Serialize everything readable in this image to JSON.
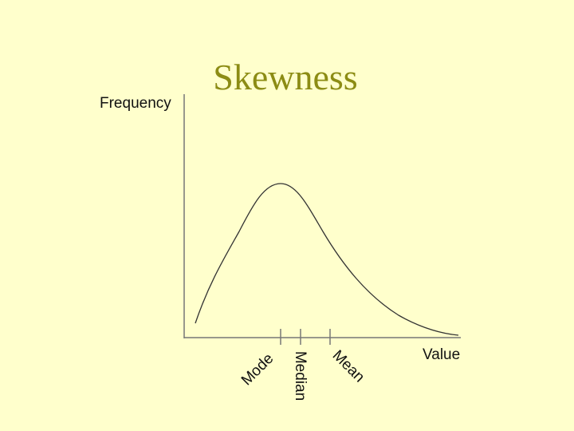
{
  "title": "Skewness",
  "y_axis_label": "Frequency",
  "x_axis_label": "Value",
  "markers": [
    {
      "label": "Mode"
    },
    {
      "label": "Median"
    },
    {
      "label": "Mean"
    }
  ]
}
